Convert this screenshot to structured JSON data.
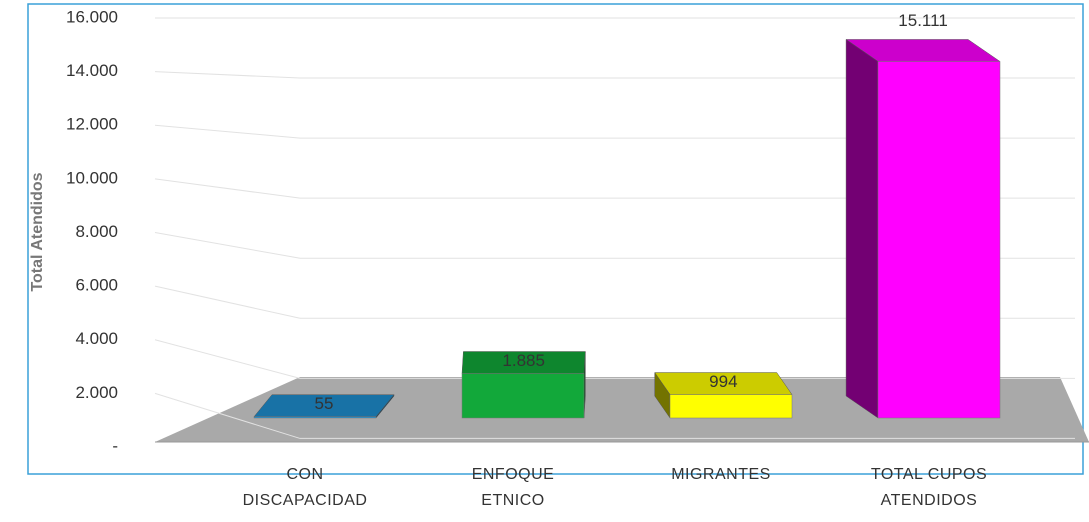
{
  "chart_data": {
    "type": "bar3d",
    "y_axis_label": "Total Atendidos",
    "categories": [
      "CON DISCAPACIDAD",
      "ENFOQUE ETNICO",
      "MIGRANTES",
      "TOTAL CUPOS ATENDIDOS"
    ],
    "values": [
      55,
      1885,
      994,
      15111
    ],
    "value_labels": [
      "55",
      "1.885",
      "994",
      "15.111"
    ],
    "colors": [
      "#1e8fd0",
      "#12a83a",
      "#ffff00",
      "#ff00ff"
    ],
    "ylim": [
      0,
      16000
    ],
    "yticks": [
      {
        "value": 0,
        "label": "-"
      },
      {
        "value": 2000,
        "label": "2.000"
      },
      {
        "value": 4000,
        "label": "4.000"
      },
      {
        "value": 6000,
        "label": "6.000"
      },
      {
        "value": 8000,
        "label": "8.000"
      },
      {
        "value": 10000,
        "label": "10.000"
      },
      {
        "value": 12000,
        "label": "12.000"
      },
      {
        "value": 14000,
        "label": "14.000"
      },
      {
        "value": 16000,
        "label": "16.000"
      }
    ],
    "grid": true
  }
}
